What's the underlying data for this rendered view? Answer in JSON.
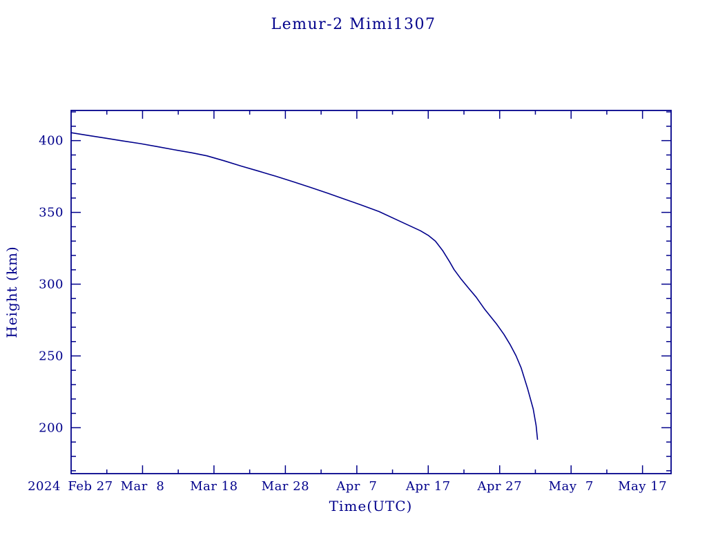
{
  "colors": {
    "ink": "#00008B",
    "background": "#FFFFFF"
  },
  "chart_data": {
    "type": "line",
    "title": "Lemur-2 Mimi1307",
    "xlabel": "Time(UTC)",
    "ylabel": "Height (km)",
    "year_label": "2024",
    "x_unit": "days since 2024-02-27",
    "xlim": [
      0,
      84
    ],
    "ylim": [
      168,
      421
    ],
    "grid": false,
    "legend": "none",
    "x_major_ticks": [
      {
        "day": 0,
        "label": "Feb 27",
        "label_dx": 28
      },
      {
        "day": 10,
        "label": "Mar  8"
      },
      {
        "day": 20,
        "label": "Mar 18"
      },
      {
        "day": 30,
        "label": "Mar 28"
      },
      {
        "day": 40,
        "label": "Apr  7"
      },
      {
        "day": 50,
        "label": "Apr 17"
      },
      {
        "day": 60,
        "label": "Apr 27"
      },
      {
        "day": 70,
        "label": "May  7"
      },
      {
        "day": 80,
        "label": "May 17"
      }
    ],
    "x_minor_step_days": 5,
    "y_major_ticks": [
      200,
      250,
      300,
      350,
      400
    ],
    "y_minor_step": 10,
    "series": [
      {
        "name": "height",
        "points": [
          [
            0.0,
            405.5
          ],
          [
            2.4,
            403.6
          ],
          [
            4.8,
            401.7
          ],
          [
            7.2,
            399.8
          ],
          [
            9.7,
            397.9
          ],
          [
            12.1,
            395.8
          ],
          [
            14.5,
            393.6
          ],
          [
            16.9,
            391.5
          ],
          [
            19.0,
            389.4
          ],
          [
            21.4,
            386.0
          ],
          [
            23.8,
            382.3
          ],
          [
            26.2,
            378.8
          ],
          [
            28.7,
            375.1
          ],
          [
            31.1,
            371.3
          ],
          [
            33.5,
            367.4
          ],
          [
            35.9,
            363.4
          ],
          [
            38.3,
            359.2
          ],
          [
            40.7,
            355.0
          ],
          [
            43.1,
            350.6
          ],
          [
            46.0,
            343.9
          ],
          [
            48.9,
            337.2
          ],
          [
            50.0,
            334.0
          ],
          [
            51.0,
            330.0
          ],
          [
            52.0,
            323.5
          ],
          [
            53.0,
            315.5
          ],
          [
            53.6,
            310.3
          ],
          [
            54.6,
            303.5
          ],
          [
            55.7,
            296.9
          ],
          [
            56.7,
            291.0
          ],
          [
            57.9,
            282.5
          ],
          [
            59.6,
            272.0
          ],
          [
            60.6,
            265.0
          ],
          [
            61.5,
            257.6
          ],
          [
            62.3,
            250.0
          ],
          [
            63.0,
            241.7
          ],
          [
            63.9,
            227.3
          ],
          [
            64.7,
            213.0
          ],
          [
            65.1,
            201.5
          ],
          [
            65.3,
            191.9
          ]
        ]
      }
    ]
  }
}
